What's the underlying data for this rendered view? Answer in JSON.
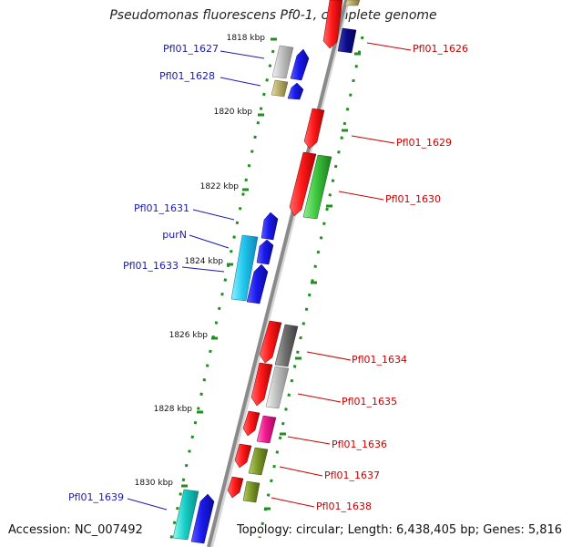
{
  "title": "Pseudomonas fluorescens Pf0-1, complete genome",
  "footer": {
    "accession": "Accession: NC_007492",
    "summary": "Topology: circular; Length: 6,438,405 bp; Genes: 5,816"
  },
  "kbp_ticks": [
    "1818 kbp",
    "1820 kbp",
    "1822 kbp",
    "1824 kbp",
    "1826 kbp",
    "1828 kbp",
    "1830 kbp"
  ],
  "gene_labels_left": [
    "Pfl01_1627",
    "Pfl01_1628",
    "Pfl01_1631",
    "purN",
    "Pfl01_1633",
    "Pfl01_1639"
  ],
  "gene_labels_right": [
    "Pfl01_1626",
    "Pfl01_1629",
    "Pfl01_1630",
    "Pfl01_1634",
    "Pfl01_1635",
    "Pfl01_1636",
    "Pfl01_1637",
    "Pfl01_1638"
  ],
  "colors": {
    "backbone": "#8a8a8a",
    "tick_green": "#1f8f1f",
    "label_blue": "#1a1ab4",
    "label_red": "#c80000",
    "feature_red": "#ff1a1a",
    "feature_blue": "#1a1aee",
    "feature_navy": "#0b0b8a",
    "feature_cyan": "#22ccee",
    "feature_teal": "#18d0c8",
    "feature_green": "#3ec83e",
    "feature_olive": "#7e9a2a",
    "feature_khaki": "#b8ad68",
    "feature_gray": "#c0c0c0",
    "feature_darkgray": "#707070",
    "feature_magenta": "#f01890"
  }
}
